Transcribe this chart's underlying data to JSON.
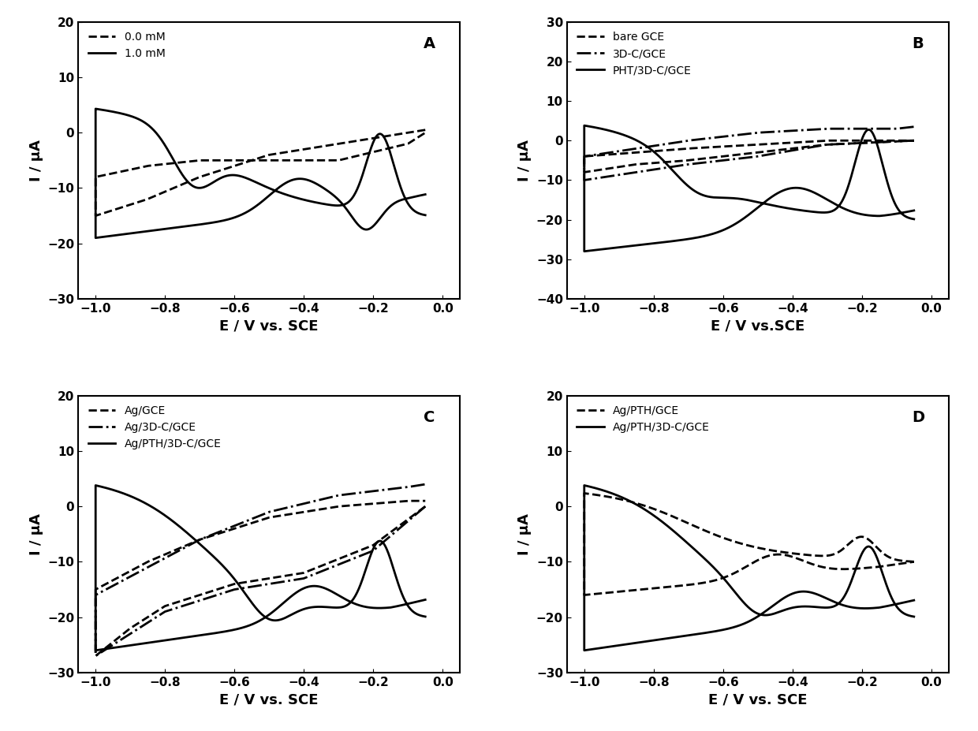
{
  "panels": [
    "A",
    "B",
    "C",
    "D"
  ],
  "panel_A": {
    "title": "A",
    "xlabel": "E / V vs. SCE",
    "ylabel": "I / μA",
    "xlim": [
      -1.05,
      0.05
    ],
    "ylim": [
      -30,
      20
    ],
    "yticks": [
      -30,
      -20,
      -10,
      0,
      10,
      20
    ],
    "xticks": [
      -1.0,
      -0.8,
      -0.6,
      -0.4,
      -0.2,
      0.0
    ],
    "legend": [
      "0.0 mM",
      "1.0 mM"
    ],
    "legend_styles": [
      "dashed",
      "solid"
    ]
  },
  "panel_B": {
    "title": "B",
    "xlabel": "E / V vs.SCE",
    "ylabel": "I / μA",
    "xlim": [
      -1.05,
      0.05
    ],
    "ylim": [
      -40,
      30
    ],
    "yticks": [
      -40,
      -30,
      -20,
      -10,
      0,
      10,
      20,
      30
    ],
    "xticks": [
      -1.0,
      -0.8,
      -0.6,
      -0.4,
      -0.2,
      0.0
    ],
    "legend": [
      "bare GCE",
      "3D-C/GCE",
      "PHT/3D-C/GCE"
    ],
    "legend_styles": [
      "dashed",
      "dashdot",
      "solid"
    ]
  },
  "panel_C": {
    "title": "C",
    "xlabel": "E / V vs. SCE",
    "ylabel": "I / μA",
    "xlim": [
      -1.05,
      0.05
    ],
    "ylim": [
      -30,
      20
    ],
    "yticks": [
      -30,
      -20,
      -10,
      0,
      10,
      20
    ],
    "xticks": [
      -1.0,
      -0.8,
      -0.6,
      -0.4,
      -0.2,
      0.0
    ],
    "legend": [
      "Ag/GCE",
      "Ag/3D-C/GCE",
      "Ag/PTH/3D-C/GCE"
    ],
    "legend_styles": [
      "dashed",
      "dashdot",
      "solid"
    ]
  },
  "panel_D": {
    "title": "D",
    "xlabel": "E / V vs. SCE",
    "ylabel": "I / μA",
    "xlim": [
      -1.05,
      0.05
    ],
    "ylim": [
      -30,
      20
    ],
    "yticks": [
      -30,
      -20,
      -10,
      0,
      10,
      20
    ],
    "xticks": [
      -1.0,
      -0.8,
      -0.6,
      -0.4,
      -0.2,
      0.0
    ],
    "legend": [
      "Ag/PTH/GCE",
      "Ag/PTH/3D-C/GCE"
    ],
    "legend_styles": [
      "dashed",
      "solid"
    ]
  },
  "linewidth": 2.0,
  "linecolor": "#000000"
}
